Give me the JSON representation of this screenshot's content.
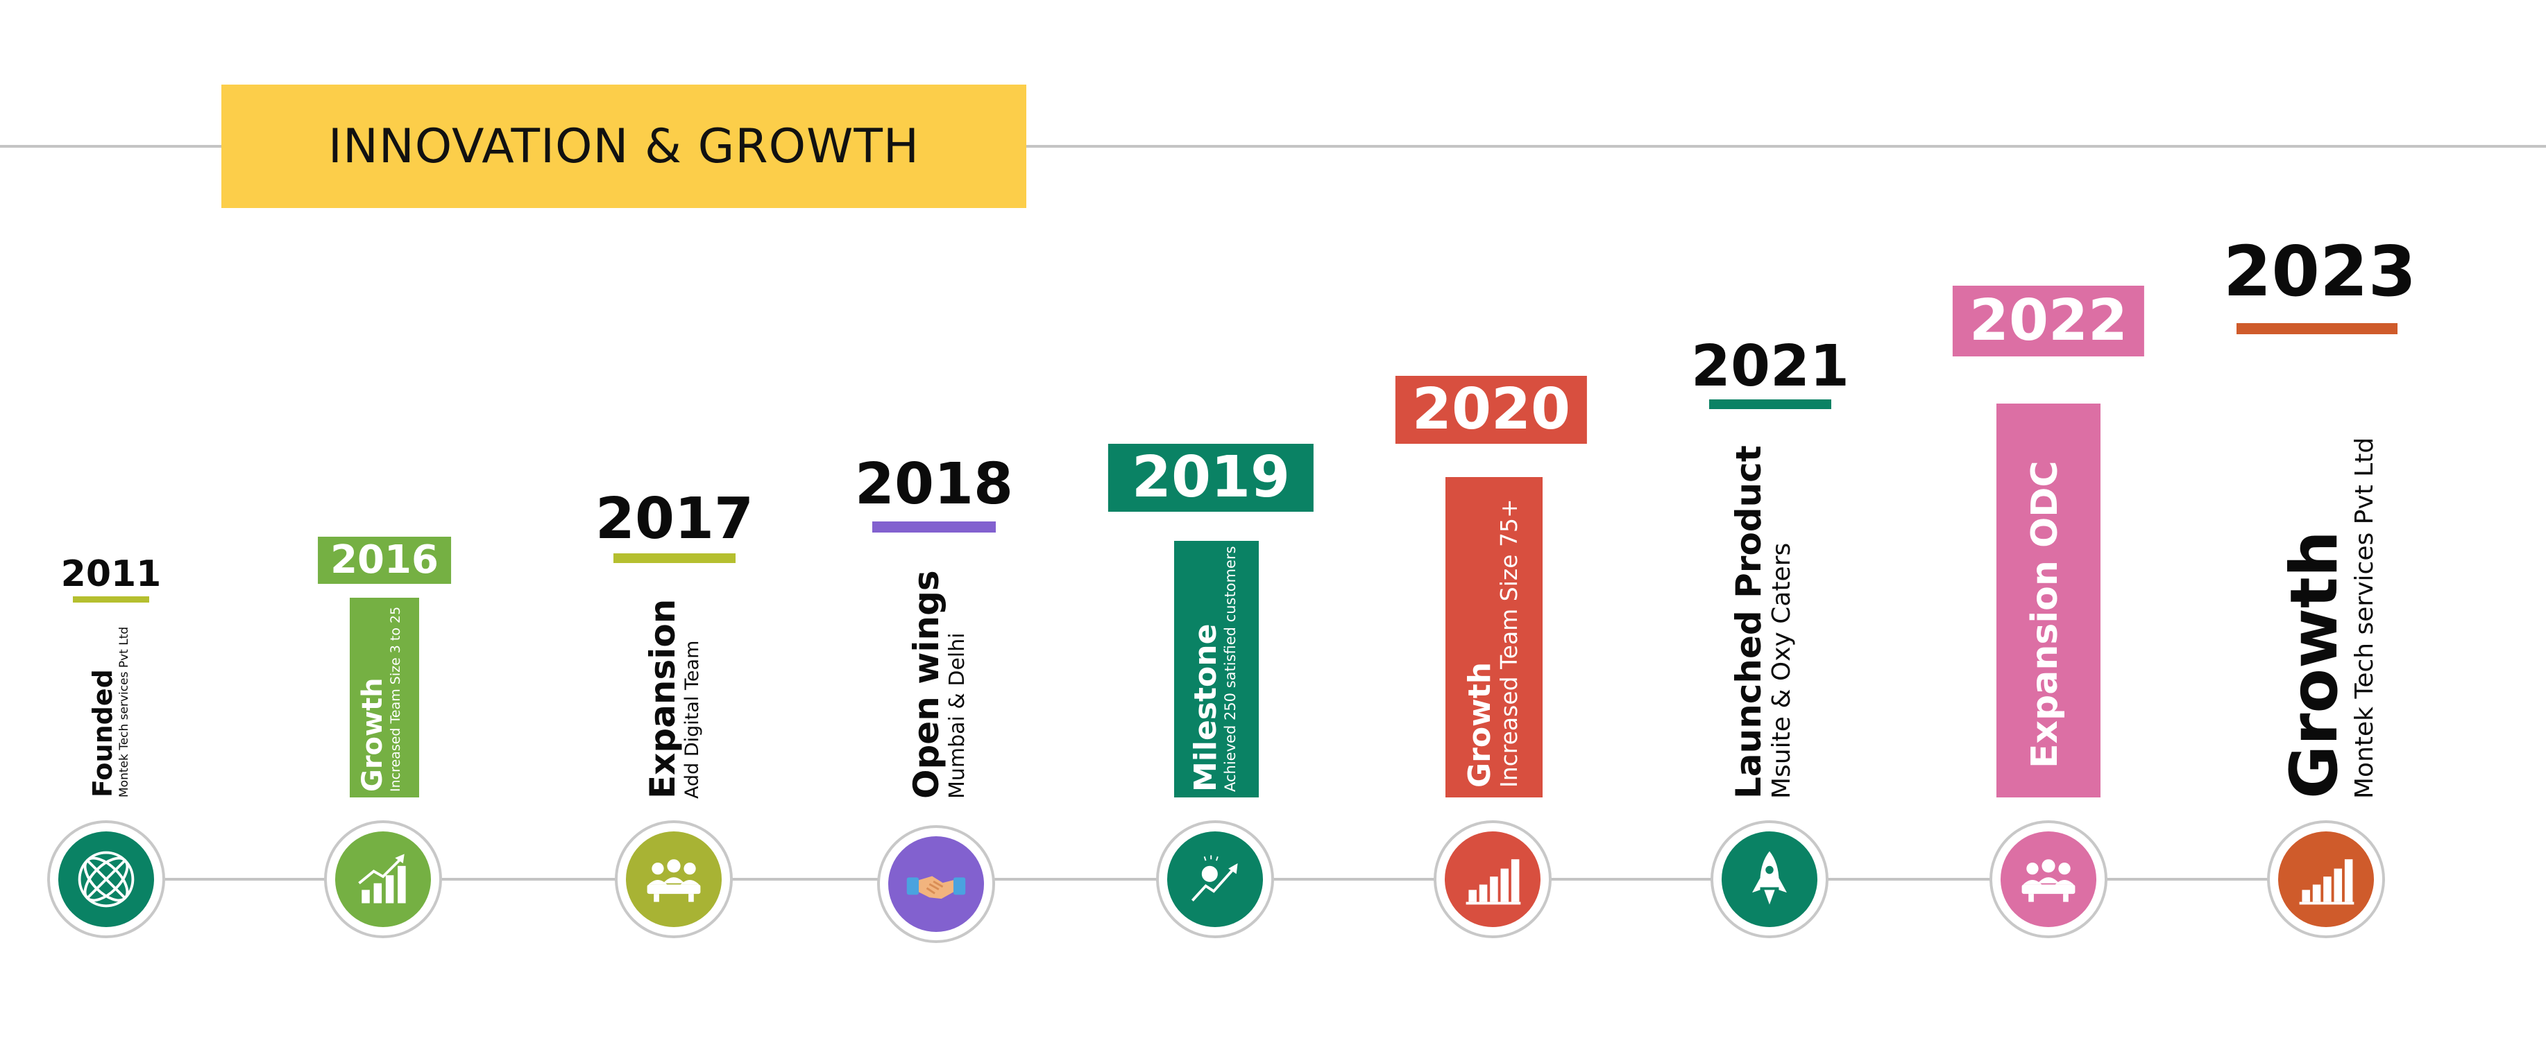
{
  "title": "INNOVATION & GROWTH",
  "colors": {
    "banner": "#fcce4a",
    "lime": "#b5bf2f",
    "green": "#75b043",
    "olive": "#a8b334",
    "purple": "#8261cf",
    "teal": "#0a8264",
    "red": "#d84f3f",
    "pink": "#dc6fa4",
    "orange": "#cf5b2b"
  },
  "milestones": [
    {
      "year": "2011",
      "heading": "Founded",
      "detail": "Montek Tech services Pvt Ltd",
      "icon": "globe-icon"
    },
    {
      "year": "2016",
      "heading": "Growth",
      "detail": "Increased Team Size 3 to 25",
      "icon": "growth-chart-icon"
    },
    {
      "year": "2017",
      "heading": "Expansion",
      "detail": "Add Digital Team",
      "icon": "team-meeting-icon"
    },
    {
      "year": "2018",
      "heading": "Open wings",
      "detail": "Mumbai & Delhi",
      "icon": "handshake-icon"
    },
    {
      "year": "2019",
      "heading": "Milestone",
      "detail": "Achieved 250 satisfied customers",
      "icon": "success-arrow-icon"
    },
    {
      "year": "2020",
      "heading": "Growth",
      "detail": "Increased Team Size 75+",
      "icon": "bar-chart-icon"
    },
    {
      "year": "2021",
      "heading": "Launched Product",
      "detail": "Msuite & Oxy Caters",
      "icon": "rocket-icon"
    },
    {
      "year": "2022",
      "heading": "Expansion ODC",
      "detail": "",
      "icon": "team-meeting-icon"
    },
    {
      "year": "2023",
      "heading": "Growth",
      "detail": "Montek Tech services Pvt Ltd",
      "icon": "bar-chart-icon"
    }
  ]
}
